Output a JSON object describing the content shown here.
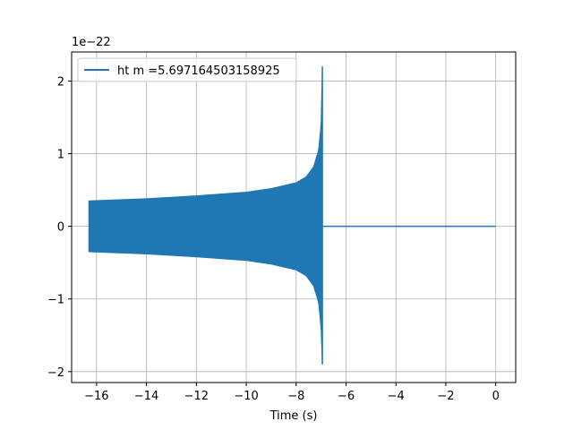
{
  "chart_data": {
    "type": "line",
    "title": "",
    "xlabel": "Time (s)",
    "ylabel": "",
    "y_scale_note": "1e−22",
    "xlim": [
      -17.0,
      0.8
    ],
    "ylim": [
      -2.15,
      2.4
    ],
    "x_ticks": [
      -16,
      -14,
      -12,
      -10,
      -8,
      -6,
      -4,
      -2,
      0
    ],
    "x_tick_labels": [
      "−16",
      "−14",
      "−12",
      "−10",
      "−8",
      "−6",
      "−4",
      "−2",
      "0"
    ],
    "y_ticks": [
      -2,
      -1,
      0,
      1,
      2
    ],
    "y_tick_labels": [
      "−2",
      "−1",
      "0",
      "1",
      "2"
    ],
    "grid": true,
    "legend_position": "top-left",
    "series": [
      {
        "name": "ht m =5.697164503158925",
        "color": "#1f77b4",
        "x_start": -16.3,
        "merger_time": -6.92,
        "x_end": 0.0,
        "envelope": {
          "x": [
            -16.3,
            -14.0,
            -12.0,
            -10.0,
            -9.0,
            -8.0,
            -7.6,
            -7.3,
            -7.1,
            -7.0,
            -6.95
          ],
          "upper": [
            0.35,
            0.38,
            0.42,
            0.47,
            0.52,
            0.6,
            0.68,
            0.82,
            1.05,
            1.4,
            2.2
          ],
          "lower": [
            -0.35,
            -0.38,
            -0.42,
            -0.47,
            -0.52,
            -0.6,
            -0.68,
            -0.82,
            -1.05,
            -1.4,
            -1.9
          ]
        },
        "post_merger_value": 0.0
      }
    ]
  }
}
